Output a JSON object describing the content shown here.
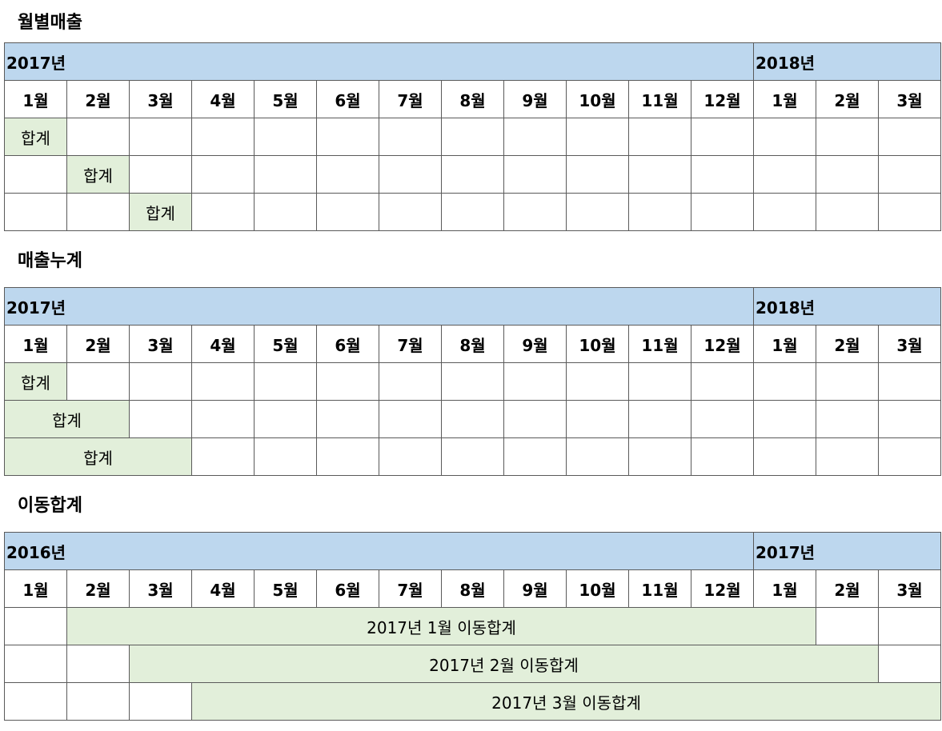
{
  "months": [
    "1월",
    "2월",
    "3월",
    "4월",
    "5월",
    "6월",
    "7월",
    "8월",
    "9월",
    "10월",
    "11월",
    "12월",
    "1월",
    "2월",
    "3월"
  ],
  "sections": [
    {
      "title": "월별매출",
      "year_left": "2017년",
      "year_right": "2018년",
      "rows": [
        {
          "offset": 0,
          "span": 1,
          "label": "합계"
        },
        {
          "offset": 1,
          "span": 1,
          "label": "합계"
        },
        {
          "offset": 2,
          "span": 1,
          "label": "합계"
        }
      ]
    },
    {
      "title": "매출누계",
      "year_left": "2017년",
      "year_right": "2018년",
      "rows": [
        {
          "offset": 0,
          "span": 1,
          "label": "합계"
        },
        {
          "offset": 0,
          "span": 2,
          "label": "합계"
        },
        {
          "offset": 0,
          "span": 3,
          "label": "합계"
        }
      ]
    },
    {
      "title": "이동합계",
      "year_left": "2016년",
      "year_right": "2017년",
      "rows": [
        {
          "offset": 1,
          "span": 12,
          "label": "2017년 1월 이동합계"
        },
        {
          "offset": 2,
          "span": 12,
          "label": "2017년 2월 이동합계"
        },
        {
          "offset": 3,
          "span": 12,
          "label": "2017년 3월 이동합계"
        }
      ]
    }
  ]
}
